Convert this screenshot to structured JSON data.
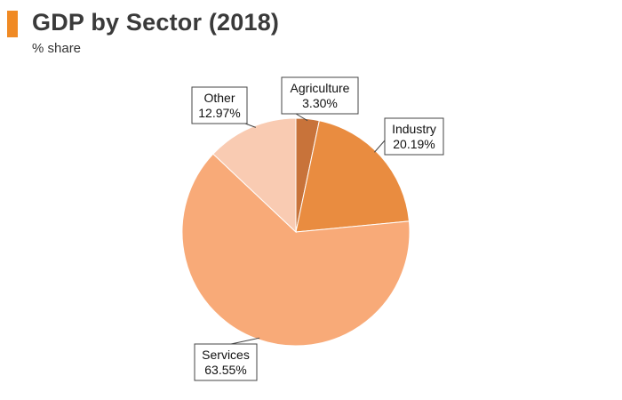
{
  "header": {
    "title": "GDP by Sector (2018)",
    "subtitle": "% share"
  },
  "colors": {
    "accent": "#f08a24"
  },
  "chart_data": {
    "type": "pie",
    "title": "GDP by Sector (2018)",
    "subtitle": "% share",
    "unit": "%",
    "legend": "none",
    "slices": [
      {
        "label": "Agriculture",
        "value": 3.3,
        "display": "3.30%",
        "color": "#c8733a"
      },
      {
        "label": "Industry",
        "value": 20.19,
        "display": "20.19%",
        "color": "#e98c40"
      },
      {
        "label": "Services",
        "value": 63.55,
        "display": "63.55%",
        "color": "#f8aa78"
      },
      {
        "label": "Other",
        "value": 12.97,
        "display": "12.97%",
        "color": "#f9cbb2"
      }
    ]
  }
}
